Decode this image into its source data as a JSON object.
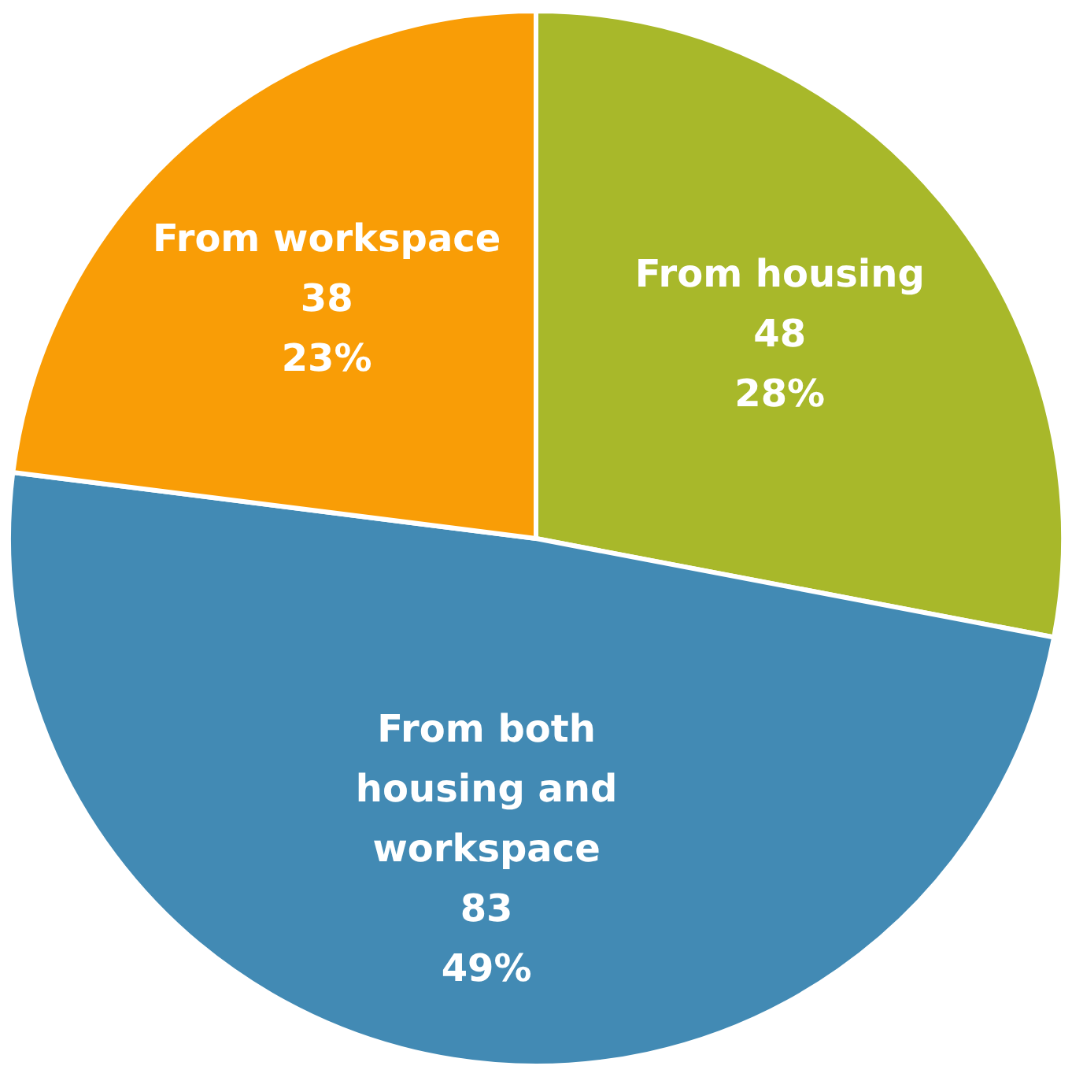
{
  "chart_data": {
    "type": "pie",
    "categories": [
      "From housing",
      "From both housing and workspace",
      "From workspace"
    ],
    "values": [
      28,
      49,
      23
    ],
    "colors": [
      "#a8b82a",
      "#428ab4",
      "#f99d06"
    ],
    "value_labels": [
      "48\n28%",
      "83\n49%",
      "38\n23%"
    ]
  }
}
